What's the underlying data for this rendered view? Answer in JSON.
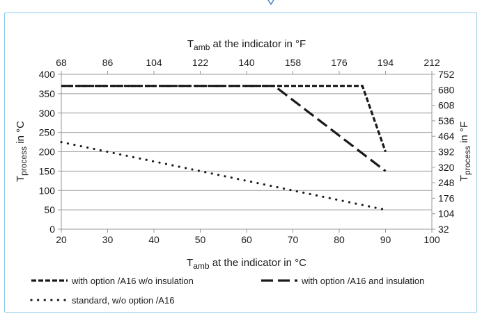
{
  "chart_data": {
    "type": "line",
    "xlabel": {
      "main": "T",
      "sub": "amb",
      "rest": " at the indicator in °C"
    },
    "x2label": {
      "main": "T",
      "sub": "amb",
      "rest": " at the indicator in °F"
    },
    "ylabel": {
      "main": "T",
      "sub": "process",
      "rest": " in °C"
    },
    "y2label": {
      "main": "T",
      "sub": "process",
      "rest": " in °F"
    },
    "xlim": [
      20,
      100
    ],
    "ylim": [
      0,
      400
    ],
    "x_ticks": [
      "20",
      "30",
      "40",
      "50",
      "60",
      "70",
      "80",
      "90",
      "100"
    ],
    "y_ticks": [
      "0",
      "50",
      "100",
      "150",
      "200",
      "250",
      "300",
      "350",
      "400"
    ],
    "x2_ticks": [
      "68",
      "86",
      "104",
      "122",
      "140",
      "158",
      "176",
      "194",
      "212"
    ],
    "y2_ticks": [
      "32",
      "104",
      "176",
      "248",
      "320",
      "392",
      "464",
      "536",
      "608",
      "680",
      "752"
    ],
    "grid": "horizontal",
    "legend_position": "bottom",
    "series": [
      {
        "name": "with option /A16 w/o insulation",
        "style": "short-dash",
        "x": [
          20,
          85,
          90
        ],
        "y": [
          370,
          370,
          200
        ]
      },
      {
        "name": "with option /A16 and insulation",
        "style": "long-dash",
        "x": [
          20,
          66,
          90
        ],
        "y": [
          370,
          370,
          150
        ]
      },
      {
        "name": "standard, w/o option /A16",
        "style": "dot",
        "x": [
          20,
          90
        ],
        "y": [
          225,
          50
        ]
      }
    ],
    "colors": {
      "line": "#1a1a1a",
      "grid": "#999999",
      "frame": "#8ec8e8"
    }
  }
}
